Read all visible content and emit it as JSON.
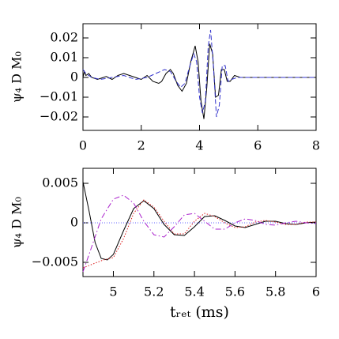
{
  "chart_data": [
    {
      "type": "line",
      "y_label": "ψ₄ D M₀",
      "xlim": [
        0,
        8
      ],
      "ylim": [
        -0.0268,
        0.0272
      ],
      "xticks": [
        0,
        2,
        4,
        6,
        8
      ],
      "yticks": [
        {
          "value": -0.02,
          "label": "−0.02"
        },
        {
          "value": -0.01,
          "label": "−0.01"
        },
        0,
        0.01,
        0.02
      ],
      "series": [
        {
          "color": "#000000",
          "style": "solid",
          "x": [
            0,
            0.05,
            0.1,
            0.2,
            0.3,
            0.5,
            0.8,
            1.0,
            1.2,
            1.4,
            1.6,
            1.8,
            2.0,
            2.2,
            2.4,
            2.6,
            2.7,
            2.85,
            3.0,
            3.1,
            3.25,
            3.4,
            3.55,
            3.7,
            3.85,
            3.95,
            4.05,
            4.15,
            4.25,
            4.35,
            4.45,
            4.55,
            4.65,
            4.75,
            4.85,
            4.95,
            5.05,
            5.2,
            5.4,
            5.6,
            6,
            7,
            8
          ],
          "values": [
            0,
            0.003,
            0.001,
            0.002,
            0,
            -0.001,
            0.0005,
            -0.001,
            0.001,
            0.002,
            0.001,
            0,
            -0.001,
            0.001,
            -0.002,
            -0.003,
            -0.002,
            0.002,
            0.004,
            0.002,
            -0.004,
            -0.007,
            -0.003,
            0.008,
            0.016,
            0.008,
            -0.012,
            -0.021,
            -0.005,
            0.017,
            0.012,
            -0.01,
            -0.009,
            0.004,
            0.004,
            -0.002,
            -0.002,
            0.001,
            0,
            0,
            0,
            0,
            0
          ]
        },
        {
          "color": "#3333cc",
          "style": "dashed",
          "x": [
            0,
            0.1,
            0.3,
            0.6,
            1.0,
            1.4,
            1.8,
            2.2,
            2.5,
            2.8,
            3.0,
            3.2,
            3.35,
            3.5,
            3.65,
            3.8,
            3.9,
            4.0,
            4.1,
            4.2,
            4.3,
            4.38,
            4.48,
            4.58,
            4.68,
            4.78,
            4.88,
            4.98,
            5.1,
            5.3,
            6,
            8
          ],
          "values": [
            0.004,
            0.002,
            0,
            -0.001,
            0,
            0.001,
            -0.001,
            0,
            0.002,
            0.004,
            0.003,
            -0.002,
            -0.005,
            -0.003,
            0.005,
            0.012,
            0.008,
            -0.01,
            -0.018,
            -0.012,
            0.016,
            0.024,
            0.005,
            -0.02,
            -0.014,
            0.006,
            0.006,
            -0.002,
            -0.001,
            0,
            0,
            0
          ]
        }
      ]
    },
    {
      "type": "line",
      "y_label": "ψ₄ D M₀",
      "x_label": "tᵣₑₜ (ms)",
      "xlim": [
        4.85,
        6
      ],
      "ylim": [
        -0.0068,
        0.0069
      ],
      "xticks": [
        5,
        5.2,
        5.4,
        5.6,
        5.8,
        6
      ],
      "yticks": [
        {
          "value": -0.005,
          "label": "−0.005"
        },
        0,
        0.005
      ],
      "zero_line_color": "#6666ff",
      "series": [
        {
          "color": "#000000",
          "style": "solid",
          "x": [
            4.85,
            4.88,
            4.91,
            4.94,
            4.97,
            5.0,
            5.05,
            5.1,
            5.15,
            5.2,
            5.25,
            5.3,
            5.35,
            5.4,
            5.45,
            5.5,
            5.55,
            5.6,
            5.65,
            5.7,
            5.75,
            5.8,
            5.85,
            5.9,
            5.95,
            6.0
          ],
          "values": [
            0.0052,
            0.0015,
            -0.0025,
            -0.0045,
            -0.0047,
            -0.004,
            -0.001,
            0.0018,
            0.0028,
            0.0018,
            -0.0002,
            -0.0015,
            -0.0016,
            -0.0005,
            0.0008,
            0.0009,
            0.0003,
            -0.0004,
            -0.0006,
            -0.0002,
            0.0002,
            0.0002,
            -0.0001,
            -0.0002,
            0,
            0.0001
          ]
        },
        {
          "color": "#dd2222",
          "style": "dotted",
          "x": [
            4.85,
            4.9,
            4.95,
            5.0,
            5.05,
            5.1,
            5.15,
            5.2,
            5.25,
            5.3,
            5.35,
            5.4,
            5.45,
            5.5,
            5.55,
            5.6,
            5.65,
            5.7,
            5.75,
            5.8,
            5.85,
            5.9,
            5.95,
            6.0
          ],
          "values": [
            -0.0057,
            -0.0052,
            -0.0047,
            -0.0044,
            -0.002,
            0.0012,
            0.0029,
            0.002,
            0.0002,
            -0.0014,
            -0.0014,
            0.0002,
            0.0012,
            0.0008,
            0,
            -0.0006,
            -0.0005,
            0.0001,
            0.0003,
            0.0001,
            -0.0002,
            -0.0002,
            0.0001,
            0.0001
          ]
        },
        {
          "color": "#aa22cc",
          "style": "dashdot",
          "x": [
            4.85,
            4.88,
            4.94,
            5.0,
            5.05,
            5.1,
            5.15,
            5.2,
            5.25,
            5.3,
            5.35,
            5.4,
            5.45,
            5.5,
            5.55,
            5.6,
            5.65,
            5.7,
            5.75,
            5.8,
            5.85,
            5.9,
            5.95,
            6.0
          ],
          "values": [
            -0.0062,
            -0.004,
            0.0005,
            0.003,
            0.0035,
            0.0025,
            0.0002,
            -0.0015,
            -0.0018,
            -0.0005,
            0.001,
            0.0012,
            0.0002,
            -0.0008,
            -0.0008,
            0,
            0.0005,
            0.0003,
            -0.0002,
            -0.0003,
            0,
            0.0002,
            0,
            -0.0001
          ]
        }
      ]
    }
  ]
}
